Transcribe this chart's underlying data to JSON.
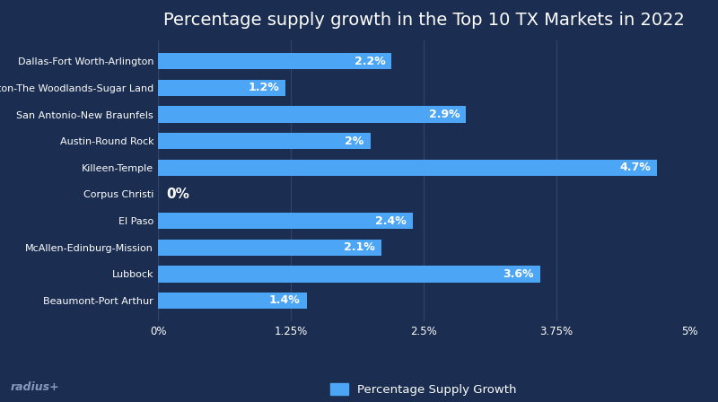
{
  "title": "Percentage supply growth in the Top 10 TX Markets in 2022",
  "categories": [
    "Beaumont-Port Arthur",
    "Lubbock",
    "McAllen-Edinburg-Mission",
    "El Paso",
    "Corpus Christi",
    "Killeen-Temple",
    "Austin-Round Rock",
    "San Antonio-New Braunfels",
    "Houston-The Woodlands-Sugar Land",
    "Dallas-Fort Worth-Arlington"
  ],
  "values": [
    1.4,
    3.6,
    2.1,
    2.4,
    0.0,
    4.7,
    2.0,
    2.9,
    1.2,
    2.2
  ],
  "bar_color": "#4da6f5",
  "background_color": "#1b2d50",
  "text_color": "#ffffff",
  "xlim": [
    0,
    5
  ],
  "xticks": [
    0,
    1.25,
    2.5,
    3.75,
    5.0
  ],
  "xtick_labels": [
    "0%",
    "1.25%",
    "2.5%",
    "3.75%",
    "5%"
  ],
  "legend_label": "Percentage Supply Growth",
  "watermark": "radius+",
  "title_fontsize": 14,
  "label_fontsize": 8,
  "tick_fontsize": 8.5,
  "grid_color": "#2e4570"
}
